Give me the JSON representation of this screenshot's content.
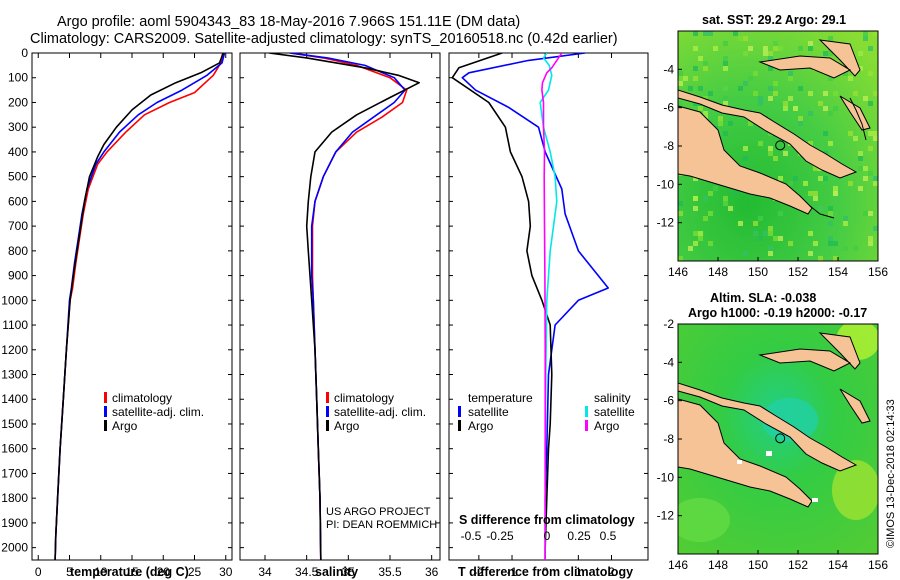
{
  "header": {
    "title_line1": "Argo profile: aoml 5904343_83 18-May-2016 7.966S 151.11E (DM data)",
    "title_line2": "Climatology: CARS2009. Satellite-adjusted climatology: synTS_20160518.nc (0.42d earlier)"
  },
  "credit": {
    "project": "US ARGO PROJECT",
    "pi": "PI: DEAN ROEMMICH",
    "imos": "©IMOS 13-Dec-2018 02:14:33"
  },
  "colors": {
    "climatology": "#ff0000",
    "satellite": "#0000ff",
    "argo": "#000000",
    "salinity_satellite": "#00e8e8",
    "salinity_argo": "#ff00ff",
    "land": "#f5c396",
    "ocean": "#33cc33"
  },
  "chart_data": [
    {
      "type": "line",
      "id": "temperature",
      "xlabel": "temperature (deg C)",
      "ylabel": "",
      "xlim": [
        -1,
        31
      ],
      "ylim": [
        2050,
        0
      ],
      "xticks": [
        0,
        5,
        10,
        15,
        20,
        25,
        30
      ],
      "depth_ticks": [
        0,
        100,
        200,
        300,
        400,
        500,
        600,
        700,
        800,
        900,
        1000,
        1100,
        1200,
        1300,
        1400,
        1500,
        1600,
        1700,
        1800,
        1900,
        2000
      ],
      "legend": [
        "climatology",
        "satellite-adj. clim.",
        "Argo"
      ],
      "series": [
        {
          "name": "climatology",
          "color": "#ff0000",
          "points": [
            [
              29.5,
              0
            ],
            [
              29.2,
              40
            ],
            [
              28,
              90
            ],
            [
              25,
              160
            ],
            [
              21,
              200
            ],
            [
              17,
              250
            ],
            [
              14,
              320
            ],
            [
              11,
              400
            ],
            [
              9.5,
              450
            ],
            [
              8,
              550
            ],
            [
              7.2,
              650
            ],
            [
              6.6,
              750
            ],
            [
              6,
              850
            ],
            [
              5.5,
              950
            ],
            [
              5.1,
              1000
            ],
            [
              4.5,
              1200
            ],
            [
              4,
              1400
            ],
            [
              3.5,
              1600
            ],
            [
              3.1,
              1800
            ],
            [
              2.8,
              1950
            ],
            [
              2.7,
              2050
            ]
          ]
        },
        {
          "name": "satellite-adj. clim.",
          "color": "#0000ff",
          "points": [
            [
              29.8,
              0
            ],
            [
              29.4,
              40
            ],
            [
              27,
              90
            ],
            [
              23,
              150
            ],
            [
              19,
              200
            ],
            [
              16,
              250
            ],
            [
              13,
              320
            ],
            [
              10.5,
              400
            ],
            [
              9.2,
              450
            ],
            [
              7.8,
              550
            ],
            [
              7,
              650
            ],
            [
              6.4,
              750
            ],
            [
              5.8,
              850
            ],
            [
              5.3,
              950
            ],
            [
              5,
              1000
            ],
            [
              4.5,
              1200
            ],
            [
              4,
              1400
            ],
            [
              3.5,
              1600
            ],
            [
              3.1,
              1800
            ],
            [
              2.8,
              1950
            ],
            [
              2.7,
              2050
            ]
          ]
        },
        {
          "name": "Argo",
          "color": "#000000",
          "points": [
            [
              29.6,
              0
            ],
            [
              29,
              40
            ],
            [
              26,
              80
            ],
            [
              22,
              120
            ],
            [
              18,
              170
            ],
            [
              15,
              230
            ],
            [
              12.5,
              300
            ],
            [
              10.5,
              370
            ],
            [
              9.5,
              420
            ],
            [
              8.2,
              500
            ],
            [
              7.4,
              600
            ],
            [
              6.8,
              700
            ],
            [
              6.2,
              800
            ],
            [
              5.6,
              900
            ],
            [
              5.1,
              1000
            ],
            [
              4.5,
              1200
            ],
            [
              4,
              1400
            ],
            [
              3.5,
              1600
            ],
            [
              3.1,
              1800
            ],
            [
              2.8,
              1950
            ],
            [
              2.7,
              2050
            ]
          ]
        }
      ]
    },
    {
      "type": "line",
      "id": "salinity",
      "xlabel": "salinity",
      "ylabel": "",
      "xlim": [
        33.7,
        36.1
      ],
      "ylim": [
        2050,
        0
      ],
      "xticks": [
        34,
        34.5,
        35,
        35.5,
        36
      ],
      "xticklabels": [
        "34",
        "34.5",
        "35",
        "35.5",
        "36"
      ],
      "legend": [
        "climatology",
        "satellite-adj. clim.",
        "Argo"
      ],
      "series": [
        {
          "name": "climatology",
          "color": "#ff0000",
          "points": [
            [
              34.3,
              0
            ],
            [
              34.7,
              20
            ],
            [
              35.1,
              50
            ],
            [
              35.5,
              100
            ],
            [
              35.7,
              150
            ],
            [
              35.65,
              200
            ],
            [
              35.4,
              260
            ],
            [
              35.1,
              320
            ],
            [
              34.85,
              400
            ],
            [
              34.7,
              500
            ],
            [
              34.6,
              600
            ],
            [
              34.57,
              700
            ],
            [
              34.57,
              900
            ],
            [
              34.58,
              1000
            ],
            [
              34.6,
              1200
            ],
            [
              34.62,
              1400
            ],
            [
              34.64,
              1600
            ],
            [
              34.66,
              1800
            ],
            [
              34.67,
              2050
            ]
          ]
        },
        {
          "name": "satellite-adj. clim.",
          "color": "#0000ff",
          "points": [
            [
              34.3,
              0
            ],
            [
              34.75,
              20
            ],
            [
              35.2,
              50
            ],
            [
              35.55,
              100
            ],
            [
              35.68,
              150
            ],
            [
              35.55,
              200
            ],
            [
              35.3,
              260
            ],
            [
              35.05,
              320
            ],
            [
              34.85,
              400
            ],
            [
              34.7,
              500
            ],
            [
              34.6,
              600
            ],
            [
              34.56,
              700
            ],
            [
              34.56,
              900
            ],
            [
              34.58,
              1000
            ],
            [
              34.6,
              1200
            ],
            [
              34.62,
              1400
            ],
            [
              34.64,
              1600
            ],
            [
              34.66,
              1800
            ],
            [
              34.67,
              2050
            ]
          ]
        },
        {
          "name": "Argo",
          "color": "#000000",
          "points": [
            [
              34.05,
              0
            ],
            [
              34.5,
              20
            ],
            [
              35.2,
              60
            ],
            [
              35.6,
              90
            ],
            [
              35.85,
              120
            ],
            [
              35.5,
              180
            ],
            [
              35.1,
              250
            ],
            [
              34.8,
              320
            ],
            [
              34.6,
              400
            ],
            [
              34.55,
              500
            ],
            [
              34.52,
              600
            ],
            [
              34.5,
              700
            ],
            [
              34.52,
              800
            ],
            [
              34.54,
              900
            ],
            [
              34.56,
              1000
            ],
            [
              34.6,
              1200
            ],
            [
              34.62,
              1400
            ],
            [
              34.64,
              1600
            ],
            [
              34.66,
              1800
            ],
            [
              34.67,
              2050
            ]
          ]
        }
      ]
    },
    {
      "type": "line",
      "id": "difference",
      "xlabel": "T difference from climatology",
      "ylabel": "",
      "xlim": [
        -2.9,
        3.1
      ],
      "ylim": [
        2050,
        0
      ],
      "xticks": [
        -2,
        -1,
        0,
        1,
        2
      ],
      "xticklabels": [
        "-2",
        "-1",
        "0",
        "1",
        "2"
      ],
      "s_axis_label": "S difference from climatology",
      "s_ticks": [
        "-0.5",
        "-0.25",
        "0",
        "0.25",
        "0.5"
      ],
      "legend_temperature": {
        "heading": "temperature",
        "items": [
          "satellite",
          "Argo"
        ]
      },
      "legend_salinity": {
        "heading": "salinity",
        "items": [
          "satellite",
          "Argo"
        ]
      },
      "series": [
        {
          "name": "T satellite",
          "color": "#0000ff",
          "points": [
            [
              1.2,
              0
            ],
            [
              -0.5,
              30
            ],
            [
              -2.3,
              80
            ],
            [
              -2.5,
              100
            ],
            [
              -2.1,
              150
            ],
            [
              -1.1,
              220
            ],
            [
              -0.2,
              300
            ],
            [
              0,
              400
            ],
            [
              0.5,
              550
            ],
            [
              0.6,
              650
            ],
            [
              1,
              800
            ],
            [
              1.9,
              950
            ],
            [
              1,
              1000
            ],
            [
              0.3,
              1100
            ],
            [
              0.1,
              1300
            ],
            [
              0.05,
              1600
            ],
            [
              0,
              1800
            ],
            [
              0,
              2050
            ]
          ]
        },
        {
          "name": "T Argo",
          "color": "#000000",
          "points": [
            [
              -1.3,
              0
            ],
            [
              -2.6,
              60
            ],
            [
              -2.8,
              100
            ],
            [
              -1.7,
              200
            ],
            [
              -1.2,
              300
            ],
            [
              -1.05,
              400
            ],
            [
              -0.7,
              500
            ],
            [
              -0.5,
              600
            ],
            [
              -0.45,
              700
            ],
            [
              -0.55,
              800
            ],
            [
              -0.4,
              900
            ],
            [
              -0.1,
              1000
            ],
            [
              0.15,
              1100
            ],
            [
              0.2,
              1300
            ],
            [
              0.15,
              1500
            ],
            [
              0.1,
              1600
            ],
            [
              0.05,
              1800
            ],
            [
              0,
              2000
            ],
            [
              0,
              2050
            ]
          ]
        },
        {
          "name": "S satellite",
          "color": "#00e8e8",
          "points": [
            [
              0.05,
              0
            ],
            [
              -0.05,
              20
            ],
            [
              0.12,
              50
            ],
            [
              0.2,
              90
            ],
            [
              0.1,
              150
            ],
            [
              -0.15,
              200
            ],
            [
              -0.05,
              300
            ],
            [
              0.15,
              400
            ],
            [
              0.3,
              500
            ],
            [
              0.35,
              600
            ],
            [
              0.25,
              700
            ],
            [
              0.15,
              800
            ],
            [
              0.05,
              1000
            ],
            [
              0.02,
              1300
            ],
            [
              0,
              1600
            ],
            [
              0,
              2050
            ]
          ]
        },
        {
          "name": "S Argo",
          "color": "#ff00ff",
          "points": [
            [
              0.5,
              0
            ],
            [
              0.35,
              30
            ],
            [
              0.2,
              60
            ],
            [
              0.05,
              80
            ],
            [
              -0.08,
              120
            ],
            [
              -0.1,
              150
            ],
            [
              -0.05,
              200
            ],
            [
              -0.05,
              300
            ],
            [
              -0.02,
              400
            ],
            [
              -0.03,
              500
            ],
            [
              -0.02,
              700
            ],
            [
              -0.01,
              900
            ],
            [
              0,
              1200
            ],
            [
              0,
              1600
            ],
            [
              0,
              2050
            ]
          ]
        }
      ]
    },
    {
      "type": "heatmap",
      "id": "sst_map",
      "title": "sat. SST: 29.2 Argo: 29.1",
      "xlim": [
        146,
        156
      ],
      "ylim": [
        -14,
        -2
      ],
      "xticks": [
        "146",
        "148",
        "150",
        "152",
        "154",
        "156"
      ],
      "yticks": [
        "-4",
        "-6",
        "-8",
        "-10",
        "-12"
      ],
      "argo_position": {
        "lon": 151.11,
        "lat": -7.966
      }
    },
    {
      "type": "heatmap",
      "id": "sla_map",
      "title_line1": "Altim. SLA: -0.038",
      "title_line2": "Argo h1000: -0.19 h2000: -0.17",
      "xlim": [
        146,
        156
      ],
      "ylim": [
        -14,
        -2
      ],
      "xticks": [
        "146",
        "148",
        "150",
        "152",
        "154",
        "156"
      ],
      "yticks": [
        "-2",
        "-4",
        "-6",
        "-8",
        "-10",
        "-12"
      ],
      "argo_position": {
        "lon": 151.11,
        "lat": -7.966
      }
    }
  ]
}
